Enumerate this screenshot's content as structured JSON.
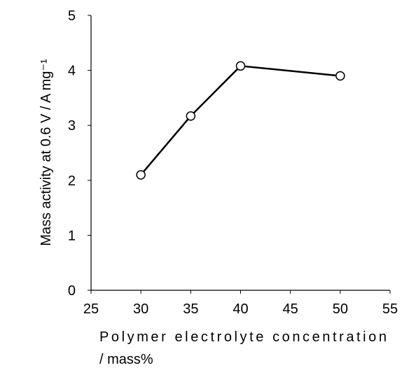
{
  "chart_data": {
    "type": "line",
    "x": [
      30,
      35,
      40,
      50
    ],
    "series": [
      {
        "name": "mass activity",
        "color": "#000000",
        "values": [
          2.1,
          3.17,
          4.08,
          3.9
        ]
      }
    ],
    "xlim": [
      25,
      55
    ],
    "xticks": [
      25,
      30,
      35,
      40,
      45,
      50,
      55
    ],
    "ylim": [
      0,
      5
    ],
    "yticks": [
      0,
      1,
      2,
      3,
      4,
      5
    ],
    "xlabel": [
      "Polymer electrolyte concentration",
      "/ mass%"
    ],
    "ylabel": "Mass activity at 0.6 V / A mg⁻¹",
    "grid": false
  }
}
